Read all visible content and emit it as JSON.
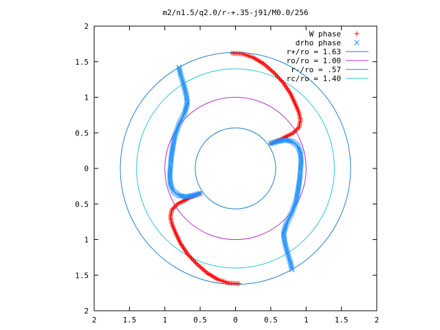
{
  "chart_data": {
    "type": "scatter",
    "title": "m2/n1.5/q2.0/r-+.35-j91/M0.0/256",
    "xlabel": "",
    "ylabel": "",
    "xlim": [
      -2,
      2
    ],
    "ylim": [
      -2,
      2
    ],
    "x_ticks": [
      {
        "value": -2,
        "label": "2"
      },
      {
        "value": -1.5,
        "label": "1.5"
      },
      {
        "value": -1,
        "label": "1"
      },
      {
        "value": -0.5,
        "label": "0.5"
      },
      {
        "value": 0,
        "label": "0"
      },
      {
        "value": 0.5,
        "label": "0.5"
      },
      {
        "value": 1,
        "label": "1"
      },
      {
        "value": 1.5,
        "label": "1.5"
      },
      {
        "value": 2,
        "label": "2"
      }
    ],
    "y_ticks": [
      {
        "value": 2,
        "label": "2"
      },
      {
        "value": 1.5,
        "label": "1.5"
      },
      {
        "value": 1,
        "label": "1"
      },
      {
        "value": 0.5,
        "label": "0.5"
      },
      {
        "value": 0,
        "label": "0"
      },
      {
        "value": -0.5,
        "label": "0.5"
      },
      {
        "value": -1,
        "label": "1"
      },
      {
        "value": -1.5,
        "label": "1.5"
      },
      {
        "value": -2,
        "label": "2"
      }
    ],
    "grid": false,
    "legend_position": "top-right",
    "circles": [
      {
        "name": "r+/ro = 1.63",
        "radius": 1.63,
        "color": "#1f7fc8"
      },
      {
        "name": "ro/ro = 1.00",
        "radius": 1.0,
        "color": "#b030c0"
      },
      {
        "name": "r-/ro = .57",
        "radius": 0.57,
        "color": "#1f7fc8"
      },
      {
        "name": "rc/ro = 1.40",
        "radius": 1.4,
        "color": "#20c8d0"
      }
    ],
    "series": [
      {
        "name": "W phase",
        "marker": "plus",
        "color": "#ff0000",
        "arms": [
          [
            [
              -0.05,
              1.62
            ],
            [
              0.1,
              1.61
            ],
            [
              0.25,
              1.56
            ],
            [
              0.4,
              1.47
            ],
            [
              0.55,
              1.34
            ],
            [
              0.68,
              1.2
            ],
            [
              0.78,
              1.05
            ],
            [
              0.85,
              0.9
            ],
            [
              0.9,
              0.78
            ],
            [
              0.92,
              0.68
            ],
            [
              0.9,
              0.58
            ],
            [
              0.82,
              0.5
            ],
            [
              0.72,
              0.45
            ],
            [
              0.62,
              0.4
            ],
            [
              0.5,
              0.35
            ]
          ],
          [
            [
              0.05,
              -1.62
            ],
            [
              -0.1,
              -1.61
            ],
            [
              -0.25,
              -1.56
            ],
            [
              -0.4,
              -1.47
            ],
            [
              -0.55,
              -1.34
            ],
            [
              -0.68,
              -1.2
            ],
            [
              -0.78,
              -1.05
            ],
            [
              -0.85,
              -0.9
            ],
            [
              -0.9,
              -0.78
            ],
            [
              -0.92,
              -0.68
            ],
            [
              -0.9,
              -0.58
            ],
            [
              -0.82,
              -0.5
            ],
            [
              -0.72,
              -0.45
            ],
            [
              -0.62,
              -0.4
            ],
            [
              -0.5,
              -0.35
            ]
          ]
        ]
      },
      {
        "name": "drho phase",
        "marker": "x",
        "color": "#1e90ff",
        "arms": [
          [
            [
              0.5,
              0.35
            ],
            [
              0.6,
              0.38
            ],
            [
              0.7,
              0.4
            ],
            [
              0.8,
              0.38
            ],
            [
              0.88,
              0.32
            ],
            [
              0.92,
              0.22
            ],
            [
              0.93,
              0.1
            ],
            [
              0.92,
              -0.02
            ],
            [
              0.91,
              -0.15
            ],
            [
              0.89,
              -0.28
            ],
            [
              0.86,
              -0.45
            ],
            [
              0.8,
              -0.62
            ],
            [
              0.72,
              -0.78
            ],
            [
              0.68,
              -0.92
            ],
            [
              0.7,
              -1.05
            ],
            [
              0.74,
              -1.2
            ],
            [
              0.78,
              -1.33
            ],
            [
              0.8,
              -1.42
            ]
          ],
          [
            [
              -0.5,
              -0.35
            ],
            [
              -0.6,
              -0.38
            ],
            [
              -0.7,
              -0.4
            ],
            [
              -0.8,
              -0.38
            ],
            [
              -0.88,
              -0.32
            ],
            [
              -0.92,
              -0.22
            ],
            [
              -0.93,
              -0.1
            ],
            [
              -0.92,
              0.02
            ],
            [
              -0.91,
              0.15
            ],
            [
              -0.89,
              0.28
            ],
            [
              -0.86,
              0.45
            ],
            [
              -0.8,
              0.62
            ],
            [
              -0.72,
              0.78
            ],
            [
              -0.68,
              0.92
            ],
            [
              -0.7,
              1.05
            ],
            [
              -0.74,
              1.2
            ],
            [
              -0.78,
              1.33
            ],
            [
              -0.8,
              1.42
            ]
          ]
        ]
      }
    ]
  }
}
